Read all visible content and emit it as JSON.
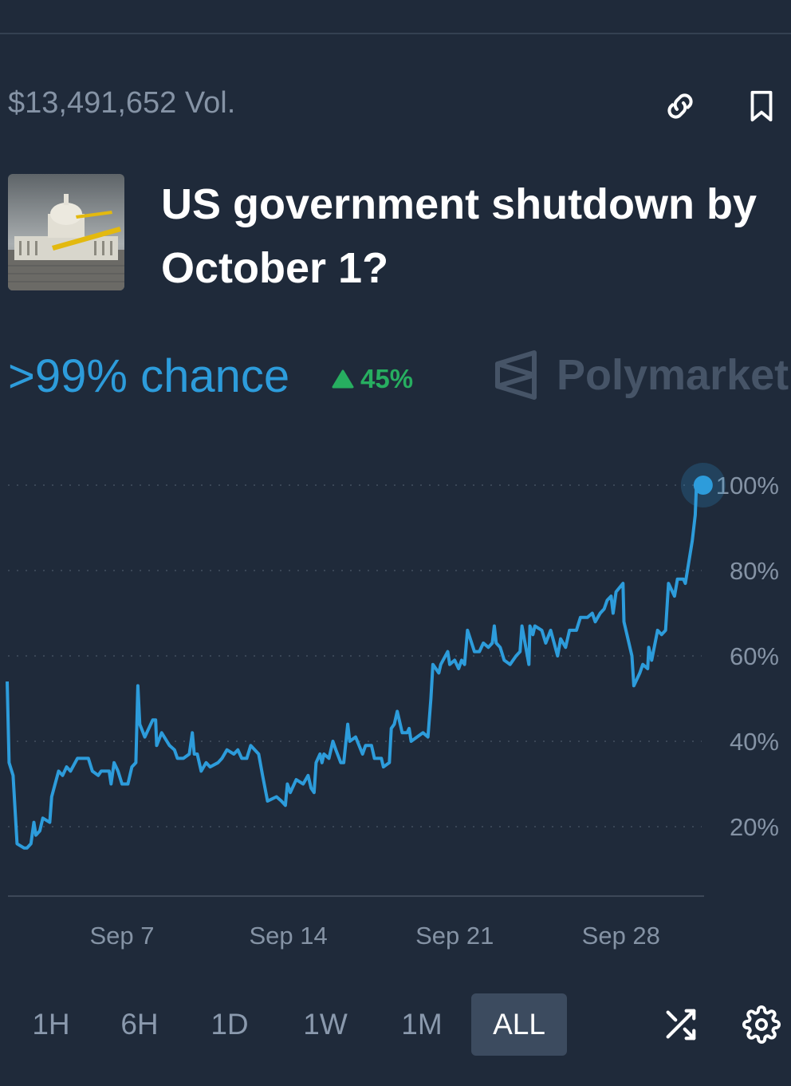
{
  "header": {
    "volume": "$13,491,652 Vol.",
    "icons": [
      "link-icon",
      "bookmark-icon"
    ]
  },
  "market": {
    "title_line1": "US government shutdown by",
    "title_line2": "October 1?",
    "chance": ">99% chance",
    "change": "45%",
    "change_direction": "up",
    "brand": "Polymarket"
  },
  "colors": {
    "line": "#2d9cdb",
    "up": "#27ae60",
    "background": "#1f2a3a"
  },
  "chart_data": {
    "type": "line",
    "title": "",
    "xlabel": "",
    "ylabel": "",
    "y_ticks": [
      "20%",
      "40%",
      "60%",
      "80%",
      "100%"
    ],
    "x_ticks": [
      "Sep 7",
      "Sep 14",
      "Sep 21",
      "Sep 28"
    ],
    "ylim": [
      0,
      100
    ],
    "xlim": [
      "Sep 2 04:00",
      "Oct 1 11:00"
    ],
    "grid": "horizontal dotted",
    "series": [
      {
        "x": [
          "Sep 2 04:00",
          "Sep 2 06:00",
          "Sep 2 10:00",
          "Sep 2 14:00",
          "Sep 2 21:00",
          "Sep 3 00:00",
          "Sep 3 04:00",
          "Sep 3 07:00",
          "Sep 3 09:00",
          "Sep 3 13:00",
          "Sep 3 16:00",
          "Sep 3 23:00",
          "Sep 4 01:00",
          "Sep 4 08:00",
          "Sep 4 12:00",
          "Sep 4 16:00",
          "Sep 4 20:00",
          "Sep 5 03:00",
          "Sep 5 14:00",
          "Sep 5 18:00",
          "Sep 6 00:00",
          "Sep 6 03:00",
          "Sep 6 11:00",
          "Sep 6 13:00",
          "Sep 6 16:00",
          "Sep 6 20:00",
          "Sep 7 00:00",
          "Sep 7 06:00",
          "Sep 7 10:00",
          "Sep 7 14:00",
          "Sep 7 16:00",
          "Sep 7 18:00",
          "Sep 7 23:00",
          "Sep 8 07:00",
          "Sep 8 10:00",
          "Sep 8 11:00",
          "Sep 8 16:00",
          "Sep 9 00:00",
          "Sep 9 05:00",
          "Sep 9 08:00",
          "Sep 9 14:00",
          "Sep 9 20:00",
          "Sep 9 23:00",
          "Sep 10 01:00",
          "Sep 10 04:00",
          "Sep 10 08:00",
          "Sep 10 13:00",
          "Sep 10 17:00",
          "Sep 11 01:00",
          "Sep 11 05:00",
          "Sep 11 10:00",
          "Sep 11 17:00",
          "Sep 11 21:00",
          "Sep 12 01:00",
          "Sep 12 06:00",
          "Sep 12 10:00",
          "Sep 12 18:00",
          "Sep 12 22:00",
          "Sep 13 03:00",
          "Sep 13 12:00",
          "Sep 13 17:00",
          "Sep 13 21:00",
          "Sep 13 23:00",
          "Sep 14 02:00",
          "Sep 14 08:00",
          "Sep 14 15:00",
          "Sep 14 20:00",
          "Sep 14 23:00",
          "Sep 15 02:00",
          "Sep 15 04:00",
          "Sep 15 08:00",
          "Sep 15 10:00",
          "Sep 15 12:00",
          "Sep 15 17:00",
          "Sep 15 21:00",
          "Sep 16 00:00",
          "Sep 16 05:00",
          "Sep 16 08:00",
          "Sep 16 12:00",
          "Sep 16 14:00",
          "Sep 16 20:00",
          "Sep 17 03:00",
          "Sep 17 06:00",
          "Sep 17 12:00",
          "Sep 17 15:00",
          "Sep 17 22:00",
          "Sep 18 00:00",
          "Sep 18 06:00",
          "Sep 18 08:00",
          "Sep 18 11:00",
          "Sep 18 14:00",
          "Sep 18 19:00",
          "Sep 19 00:00",
          "Sep 19 02:00",
          "Sep 19 04:00",
          "Sep 19 16:00",
          "Sep 19 21:00",
          "Sep 20 00:00",
          "Sep 20 02:00",
          "Sep 20 08:00",
          "Sep 20 10:00",
          "Sep 20 17:00",
          "Sep 20 19:00",
          "Sep 21 00:00",
          "Sep 21 04:00",
          "Sep 21 07:00",
          "Sep 21 10:00",
          "Sep 21 13:00",
          "Sep 21 20:00",
          "Sep 22 01:00",
          "Sep 22 05:00",
          "Sep 22 10:00",
          "Sep 22 14:00",
          "Sep 22 16:00",
          "Sep 22 18:00",
          "Sep 22 22:00",
          "Sep 23 02:00",
          "Sep 23 08:00",
          "Sep 23 14:00",
          "Sep 23 18:00",
          "Sep 23 20:00",
          "Sep 24 03:00",
          "Sep 24 04:00",
          "Sep 24 07:00",
          "Sep 24 09:00",
          "Sep 24 16:00",
          "Sep 24 20:00",
          "Sep 25 01:00",
          "Sep 25 08:00",
          "Sep 25 11:00",
          "Sep 25 16:00",
          "Sep 25 20:00",
          "Sep 26 03:00",
          "Sep 26 07:00",
          "Sep 26 14:00",
          "Sep 26 19:00",
          "Sep 26 22:00",
          "Sep 27 03:00",
          "Sep 27 07:00",
          "Sep 27 10:00",
          "Sep 27 14:00",
          "Sep 27 16:00",
          "Sep 27 19:00",
          "Sep 28 02:00",
          "Sep 28 03:00",
          "Sep 28 11:00",
          "Sep 28 13:00",
          "Sep 28 19:00",
          "Sep 28 22:00",
          "Sep 29 03:00",
          "Sep 29 04:00",
          "Sep 29 07:00",
          "Sep 29 13:00",
          "Sep 29 17:00",
          "Sep 29 21:00",
          "Sep 30 00:00",
          "Sep 30 06:00",
          "Sep 30 09:00",
          "Sep 30 15:00",
          "Sep 30 17:00",
          "Oct 1 00:00",
          "Oct 1 03:00",
          "Oct 1 04:00",
          "Oct 1 11:00"
        ],
        "values": [
          54,
          35,
          32,
          16,
          15,
          15,
          16,
          21,
          18,
          19,
          22,
          21,
          27,
          33,
          32,
          34,
          33,
          36,
          36,
          33,
          32,
          33,
          33,
          30,
          35,
          33,
          30,
          30,
          34,
          35,
          53,
          44,
          41,
          45,
          45,
          39,
          42,
          39,
          38,
          36,
          36,
          37,
          42,
          37,
          37,
          33,
          35,
          34,
          35,
          36,
          38,
          37,
          38,
          36,
          36,
          39,
          37,
          32,
          26,
          27,
          26,
          25,
          30,
          28,
          31,
          30,
          32,
          29,
          28,
          35,
          37,
          35,
          37,
          36,
          40,
          38,
          35,
          35,
          44,
          40,
          41,
          37,
          39,
          39,
          36,
          36,
          34,
          35,
          43,
          44,
          47,
          42,
          42,
          43,
          40,
          42,
          41,
          50,
          58,
          56,
          58,
          61,
          58,
          59,
          57,
          59,
          58,
          66,
          61,
          61,
          63,
          62,
          63,
          67,
          63,
          62,
          59,
          58,
          60,
          61,
          67,
          58,
          67,
          65,
          67,
          66,
          63,
          66,
          60,
          64,
          62,
          66,
          66,
          69,
          69,
          70,
          68,
          70,
          71,
          73,
          74,
          70,
          75,
          77,
          68,
          60,
          53,
          56,
          58,
          57,
          62,
          59,
          66,
          65,
          66,
          77,
          74,
          78,
          78,
          77,
          87,
          93,
          99,
          100
        ]
      }
    ]
  },
  "range_buttons": [
    {
      "label": "1H",
      "active": false
    },
    {
      "label": "6H",
      "active": false
    },
    {
      "label": "1D",
      "active": false
    },
    {
      "label": "1W",
      "active": false
    },
    {
      "label": "1M",
      "active": false
    },
    {
      "label": "ALL",
      "active": true
    }
  ],
  "footer_icons": [
    "shuffle-icon",
    "settings-gear-icon"
  ]
}
